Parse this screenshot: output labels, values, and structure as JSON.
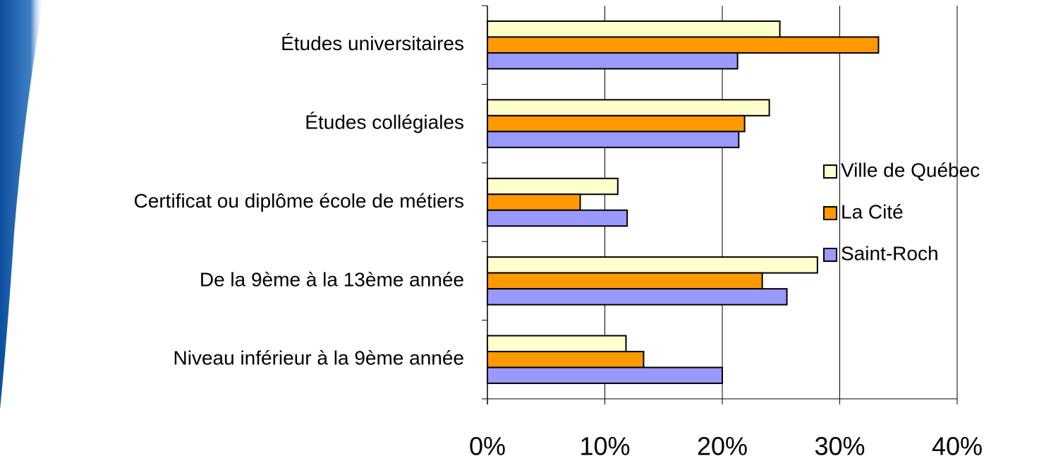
{
  "chart_data": {
    "type": "bar",
    "orientation": "horizontal",
    "categories": [
      "Études universitaires",
      "Études collégiales",
      "Certificat ou diplôme école de métiers",
      "De la 9ème à la 13ème année",
      "Niveau inférieur à la 9ème année"
    ],
    "series": [
      {
        "name": "Ville de Québec",
        "color": "#ffffcc",
        "values": [
          24.9,
          24.0,
          11.1,
          28.1,
          11.8
        ]
      },
      {
        "name": "La Cité",
        "color": "#ff9900",
        "values": [
          33.3,
          21.9,
          7.9,
          23.4,
          13.3
        ]
      },
      {
        "name": "Saint-Roch",
        "color": "#9999ff",
        "values": [
          21.3,
          21.4,
          11.9,
          25.5,
          20.0
        ]
      }
    ],
    "xlim": [
      0,
      40
    ],
    "xticks": [
      {
        "value": 0,
        "label": "0%"
      },
      {
        "value": 10,
        "label": "10%"
      },
      {
        "value": 20,
        "label": "20%"
      },
      {
        "value": 30,
        "label": "30%"
      },
      {
        "value": 40,
        "label": "40%"
      }
    ],
    "grid": true,
    "legend": "right"
  }
}
